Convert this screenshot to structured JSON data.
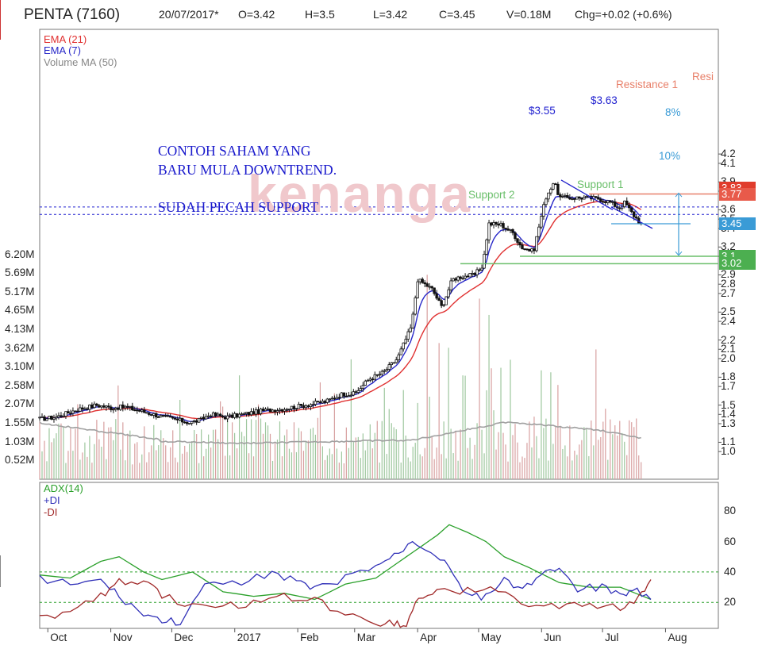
{
  "header": {
    "title": "PENTA (7160)",
    "date": "20/07/2017*",
    "open": "O=3.42",
    "high": "H=3.5",
    "low": "L=3.42",
    "close": "C=3.45",
    "volume": "V=0.18M",
    "change": "Chg=+0.02 (+0.6%)"
  },
  "legend_price": {
    "ema21": "EMA (21)",
    "ema7": "EMA (7)",
    "vol_ma": "Volume MA (50)"
  },
  "legend_adx": {
    "adx": "ADX(14)",
    "pdi": "+DI",
    "mdi": "-DI"
  },
  "watermark": "kenanga",
  "annotation_lines": [
    "CONTOH SAHAM YANG",
    "BARU MULA DOWNTREND.",
    "SUDAH PECAH SUPPORT"
  ],
  "drawing_labels": {
    "resistance": "Resistance 1",
    "resistance_cut": "Resi",
    "support1": "Support 1",
    "support2": "Support 2",
    "level_355": "$3.55",
    "level_363": "$3.63",
    "pct8": "8%",
    "pct10": "10%"
  },
  "price_tags": [
    {
      "text": "3.83",
      "value": 3.83,
      "color": "#e03c2c"
    },
    {
      "text": "3.77",
      "value": 3.77,
      "color": "#e85a4a"
    },
    {
      "text": "3.45",
      "value": 3.45,
      "color": "#3a9bd6"
    },
    {
      "text": "3.1",
      "value": 3.1,
      "color": "#4caf50"
    },
    {
      "text": "3.02",
      "value": 3.02,
      "color": "#4caf50"
    }
  ],
  "colors": {
    "ema21": "#e03030",
    "ema7": "#2828c8",
    "vol_ma": "#a0a0a0",
    "adx": "#2aa02a",
    "pdi": "#3030b8",
    "mdi": "#a02828",
    "resistance": "#e8806a",
    "support": "#6abf6a",
    "dashed_level": "#2020d0",
    "measure": "#3a9bd6"
  },
  "chart_data": [
    {
      "type": "candlestick",
      "title": "PENTA (7160)",
      "x_ticks": [
        "Oct",
        "Nov",
        "Dec",
        "2017",
        "Feb",
        "Mar",
        "Apr",
        "May",
        "Jun",
        "Jul",
        "Aug"
      ],
      "price_ticks": [
        "4.2",
        "4.1",
        "3.9",
        "3.8",
        "3.6",
        "3.5",
        "3.4",
        "3.2",
        "3.1",
        "2.9",
        "2.8",
        "2.7",
        "2.5",
        "2.4",
        "2.2",
        "2.1",
        "2.0",
        "1.8",
        "1.7",
        "1.5",
        "1.4",
        "1.3",
        "1.1",
        "1.0"
      ],
      "volume_ticks": [
        "6.20M",
        "5.69M",
        "5.17M",
        "4.65M",
        "4.13M",
        "3.62M",
        "3.10M",
        "2.58M",
        "2.07M",
        "1.55M",
        "1.03M",
        "0.52M"
      ],
      "price_path": [
        [
          "2016-09-27",
          1.35
        ],
        [
          "2016-10-05",
          1.37
        ],
        [
          "2016-10-15",
          1.45
        ],
        [
          "2016-10-25",
          1.5
        ],
        [
          "2016-11-01",
          1.47
        ],
        [
          "2016-11-08",
          1.48
        ],
        [
          "2016-11-15",
          1.44
        ],
        [
          "2016-11-22",
          1.4
        ],
        [
          "2016-11-29",
          1.36
        ],
        [
          "2016-12-06",
          1.33
        ],
        [
          "2016-12-10",
          1.31
        ],
        [
          "2016-12-15",
          1.34
        ],
        [
          "2016-12-20",
          1.4
        ],
        [
          "2016-12-28",
          1.37
        ],
        [
          "2017-01-05",
          1.4
        ],
        [
          "2017-01-15",
          1.44
        ],
        [
          "2017-01-25",
          1.46
        ],
        [
          "2017-02-05",
          1.5
        ],
        [
          "2017-02-15",
          1.54
        ],
        [
          "2017-02-23",
          1.62
        ],
        [
          "2017-03-01",
          1.62
        ],
        [
          "2017-03-08",
          1.78
        ],
        [
          "2017-03-15",
          1.85
        ],
        [
          "2017-03-22",
          2.0
        ],
        [
          "2017-03-26",
          2.2
        ],
        [
          "2017-03-29",
          2.35
        ],
        [
          "2017-04-01",
          2.85
        ],
        [
          "2017-04-08",
          2.75
        ],
        [
          "2017-04-13",
          2.55
        ],
        [
          "2017-04-18",
          2.85
        ],
        [
          "2017-04-22",
          2.88
        ],
        [
          "2017-04-29",
          2.9
        ],
        [
          "2017-05-03",
          3.0
        ],
        [
          "2017-05-06",
          3.45
        ],
        [
          "2017-05-12",
          3.44
        ],
        [
          "2017-05-18",
          3.35
        ],
        [
          "2017-05-22",
          3.2
        ],
        [
          "2017-05-28",
          3.15
        ],
        [
          "2017-05-31",
          3.45
        ],
        [
          "2017-06-03",
          3.73
        ],
        [
          "2017-06-07",
          3.9
        ],
        [
          "2017-06-10",
          3.73
        ],
        [
          "2017-06-15",
          3.73
        ],
        [
          "2017-06-22",
          3.73
        ],
        [
          "2017-06-29",
          3.72
        ],
        [
          "2017-07-05",
          3.68
        ],
        [
          "2017-07-09",
          3.62
        ],
        [
          "2017-07-12",
          3.68
        ],
        [
          "2017-07-16",
          3.55
        ],
        [
          "2017-07-20",
          3.45
        ]
      ],
      "ema7_last": 3.5,
      "ema21_last": 3.55,
      "levels": {
        "resistance": 3.77,
        "support1": 3.1,
        "support2": 3.02,
        "dashed_upper": 3.63,
        "dashed_lower": 3.55
      },
      "last": {
        "date": "20/07/2017",
        "open": 3.42,
        "high": 3.5,
        "low": 3.42,
        "close": 3.45,
        "volume_m": 0.18
      }
    },
    {
      "type": "line",
      "title": "ADX(14)",
      "y_ticks": [
        "80",
        "60",
        "40",
        "20"
      ],
      "ylim": [
        0,
        90
      ],
      "reference_lines": [
        40,
        20
      ],
      "series": [
        {
          "name": "ADX(14)",
          "values": [
            [
              0,
              38
            ],
            [
              0.05,
              36
            ],
            [
              0.1,
              47
            ],
            [
              0.13,
              50
            ],
            [
              0.17,
              40
            ],
            [
              0.2,
              35
            ],
            [
              0.25,
              40
            ],
            [
              0.3,
              27
            ],
            [
              0.35,
              24
            ],
            [
              0.4,
              26
            ],
            [
              0.45,
              22
            ],
            [
              0.5,
              32
            ],
            [
              0.55,
              36
            ],
            [
              0.6,
              50
            ],
            [
              0.65,
              64
            ],
            [
              0.67,
              71
            ],
            [
              0.7,
              66
            ],
            [
              0.73,
              60
            ],
            [
              0.76,
              50
            ],
            [
              0.8,
              43
            ],
            [
              0.85,
              33
            ],
            [
              0.9,
              30
            ],
            [
              0.95,
              30
            ],
            [
              1,
              22
            ]
          ]
        },
        {
          "name": "+DI",
          "values": [
            [
              0,
              36
            ],
            [
              0.05,
              32
            ],
            [
              0.1,
              34
            ],
            [
              0.13,
              24
            ],
            [
              0.17,
              12
            ],
            [
              0.2,
              8
            ],
            [
              0.23,
              7
            ],
            [
              0.27,
              30
            ],
            [
              0.33,
              33
            ],
            [
              0.38,
              40
            ],
            [
              0.42,
              34
            ],
            [
              0.45,
              28
            ],
            [
              0.5,
              36
            ],
            [
              0.55,
              44
            ],
            [
              0.58,
              50
            ],
            [
              0.61,
              60
            ],
            [
              0.64,
              54
            ],
            [
              0.67,
              44
            ],
            [
              0.7,
              25
            ],
            [
              0.73,
              23
            ],
            [
              0.76,
              36
            ],
            [
              0.79,
              28
            ],
            [
              0.82,
              40
            ],
            [
              0.85,
              40
            ],
            [
              0.88,
              29
            ],
            [
              0.92,
              30
            ],
            [
              0.95,
              24
            ],
            [
              0.97,
              30
            ],
            [
              1,
              22
            ]
          ]
        },
        {
          "name": "-DI",
          "values": [
            [
              0,
              10
            ],
            [
              0.05,
              14
            ],
            [
              0.1,
              24
            ],
            [
              0.13,
              33
            ],
            [
              0.17,
              35
            ],
            [
              0.2,
              25
            ],
            [
              0.25,
              17
            ],
            [
              0.3,
              17
            ],
            [
              0.35,
              20
            ],
            [
              0.4,
              24
            ],
            [
              0.45,
              22
            ],
            [
              0.5,
              12
            ],
            [
              0.55,
              7
            ],
            [
              0.58,
              7
            ],
            [
              0.6,
              5
            ],
            [
              0.62,
              24
            ],
            [
              0.65,
              27
            ],
            [
              0.7,
              28
            ],
            [
              0.75,
              28
            ],
            [
              0.8,
              18
            ],
            [
              0.85,
              17
            ],
            [
              0.9,
              18
            ],
            [
              0.95,
              17
            ],
            [
              0.98,
              22
            ],
            [
              1,
              35
            ]
          ]
        }
      ]
    }
  ]
}
